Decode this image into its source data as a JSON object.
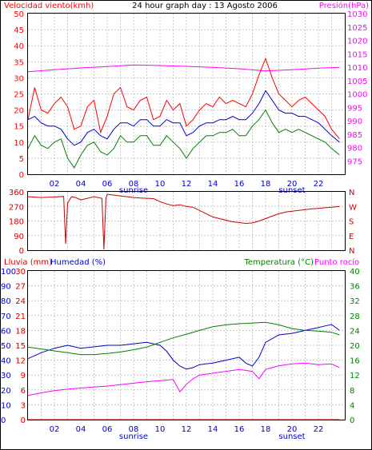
{
  "chart_data": [
    {
      "type": "line",
      "title": "24 hour graph day : 13 Agosto 2006",
      "left_axis_label": "Velocidad viento(kmh)",
      "right_axis_label": "Presión(hPa)",
      "x_ticks": [
        "02",
        "04",
        "06",
        "08",
        "10",
        "12",
        "14",
        "16",
        "18",
        "20",
        "22"
      ],
      "x_annotations": [
        {
          "at": "08",
          "text": "sunrise"
        },
        {
          "at": "20",
          "text": "sunset"
        }
      ],
      "y_left": {
        "min": 0,
        "max": 50,
        "ticks": [
          0,
          5,
          10,
          15,
          20,
          25,
          30,
          35,
          40,
          45,
          50
        ]
      },
      "y_right": {
        "min": 970,
        "max": 1030,
        "ticks": [
          975,
          980,
          985,
          990,
          995,
          1000,
          1005,
          1010,
          1015,
          1020,
          1025,
          1030
        ]
      },
      "series": [
        {
          "color": "#ff00ff",
          "axis": "right",
          "x": [
            0,
            2,
            4,
            6,
            8,
            10,
            12,
            14,
            16,
            18,
            20,
            22,
            23.6
          ],
          "values": [
            1008.3,
            1009.0,
            1009.7,
            1010.2,
            1010.8,
            1010.6,
            1010.3,
            1009.9,
            1009.4,
            1008.6,
            1009.0,
            1009.6,
            1009.9
          ]
        },
        {
          "color": "#ff0000",
          "axis": "left",
          "x": [
            0,
            0.5,
            1,
            1.5,
            2,
            2.5,
            3,
            3.5,
            4,
            4.5,
            5,
            5.5,
            6,
            6.5,
            7,
            7.5,
            8,
            8.5,
            9,
            9.5,
            10,
            10.5,
            11,
            11.5,
            12,
            12.5,
            13,
            13.5,
            14,
            14.5,
            15,
            15.5,
            16,
            16.5,
            17,
            17.5,
            18,
            18.5,
            19,
            19.5,
            20,
            20.5,
            21,
            21.5,
            22,
            22.5,
            23,
            23.6
          ],
          "values": [
            17,
            27,
            20,
            19,
            22,
            24,
            21,
            14,
            15,
            21,
            23,
            13,
            18,
            25,
            27,
            21,
            20,
            23,
            24,
            17,
            18,
            23,
            20,
            22,
            15,
            17,
            20,
            22,
            21,
            24,
            22,
            23,
            22,
            21,
            25,
            31,
            36,
            30,
            25,
            23,
            21,
            23,
            24,
            22,
            20,
            18,
            14,
            11
          ]
        },
        {
          "color": "#0000cc",
          "axis": "left",
          "x": [
            0,
            0.5,
            1,
            1.5,
            2,
            2.5,
            3,
            3.5,
            4,
            4.5,
            5,
            5.5,
            6,
            6.5,
            7,
            7.5,
            8,
            8.5,
            9,
            9.5,
            10,
            10.5,
            11,
            11.5,
            12,
            12.5,
            13,
            13.5,
            14,
            14.5,
            15,
            15.5,
            16,
            16.5,
            17,
            17.5,
            18,
            18.5,
            19,
            19.5,
            20,
            20.5,
            21,
            21.5,
            22,
            22.5,
            23,
            23.6
          ],
          "values": [
            17,
            18,
            16,
            15,
            15,
            14,
            11,
            9,
            10,
            13,
            14,
            12,
            11,
            14,
            16,
            16,
            15,
            17,
            17,
            15,
            15,
            17,
            16,
            16,
            12,
            13,
            15,
            16,
            16,
            17,
            17,
            18,
            17,
            17,
            19,
            22,
            26,
            23,
            20,
            19,
            19,
            18,
            18,
            17,
            16,
            14,
            12,
            10
          ]
        },
        {
          "color": "#008000",
          "axis": "left",
          "x": [
            0,
            0.5,
            1,
            1.5,
            2,
            2.5,
            3,
            3.5,
            4,
            4.5,
            5,
            5.5,
            6,
            6.5,
            7,
            7.5,
            8,
            8.5,
            9,
            9.5,
            10,
            10.5,
            11,
            11.5,
            12,
            12.5,
            13,
            13.5,
            14,
            14.5,
            15,
            15.5,
            16,
            16.5,
            17,
            17.5,
            18,
            18.5,
            19,
            19.5,
            20,
            20.5,
            21,
            21.5,
            22,
            22.5,
            23,
            23.6
          ],
          "values": [
            8,
            12,
            9,
            8,
            10,
            11,
            5,
            2,
            6,
            9,
            10,
            7,
            6,
            8,
            12,
            10,
            10,
            12,
            12,
            9,
            9,
            12,
            10,
            8,
            5,
            8,
            10,
            12,
            12,
            13,
            13,
            14,
            12,
            12,
            15,
            17,
            20,
            16,
            13,
            14,
            13,
            14,
            13,
            12,
            11,
            10,
            8,
            6
          ]
        }
      ]
    },
    {
      "type": "line",
      "left_ticks": [
        0,
        90,
        180,
        270,
        360
      ],
      "right_labels": [
        "N",
        "W",
        "S",
        "E",
        "N"
      ],
      "y_range": [
        0,
        360
      ],
      "series": [
        {
          "color": "#cc0000",
          "x": [
            0,
            1,
            2,
            2.7,
            2.85,
            3,
            3.3,
            3.6,
            4,
            4.5,
            5,
            5.6,
            5.75,
            5.9,
            6,
            6.5,
            7,
            7.5,
            8,
            8.5,
            9,
            9.5,
            10,
            10.5,
            11,
            11.5,
            12,
            12.5,
            13,
            13.5,
            14,
            14.5,
            15,
            15.5,
            16,
            16.5,
            17,
            17.5,
            18,
            18.5,
            19,
            19.5,
            20,
            20.5,
            21,
            21.5,
            22,
            22.5,
            23,
            23.6
          ],
          "values": [
            330,
            325,
            328,
            332,
            40,
            290,
            330,
            325,
            310,
            320,
            330,
            320,
            5,
            320,
            345,
            340,
            335,
            330,
            325,
            322,
            320,
            318,
            300,
            285,
            275,
            280,
            270,
            265,
            245,
            225,
            205,
            195,
            185,
            175,
            170,
            165,
            168,
            180,
            195,
            210,
            225,
            235,
            240,
            245,
            250,
            255,
            258,
            262,
            265,
            270
          ]
        }
      ]
    },
    {
      "type": "line",
      "left_axis_label_1": "Lluvia (mm)",
      "left_axis_label_2": "Humedad (%)",
      "right_axis_label_1": "Temperatura (°C)",
      "right_axis_label_2": "Punto rocío",
      "rain_ticks": [
        0,
        3,
        6,
        9,
        12,
        15,
        18,
        21,
        24,
        27,
        30
      ],
      "humidity_ticks": [
        0,
        10,
        20,
        30,
        40,
        50,
        60,
        70,
        80,
        90,
        100
      ],
      "temp_ticks": [
        0,
        4,
        8,
        12,
        16,
        20,
        24,
        28,
        32,
        36,
        40
      ],
      "x_ticks": [
        "02",
        "04",
        "06",
        "08",
        "10",
        "12",
        "14",
        "16",
        "18",
        "20",
        "22"
      ],
      "x_annotations": [
        {
          "at": "08",
          "text": "sunrise"
        },
        {
          "at": "20",
          "text": "sunset"
        }
      ],
      "series": [
        {
          "name": "rain",
          "color": "#ff0000",
          "axis": "rain",
          "x": [
            0,
            23.6
          ],
          "values": [
            0,
            0
          ]
        },
        {
          "color": "#ff00ff",
          "axis": "temp",
          "x": [
            0,
            1,
            2,
            3,
            4,
            5,
            6,
            7,
            8,
            9,
            10,
            11,
            11.5,
            12,
            12.5,
            13,
            14,
            15,
            16,
            17,
            17.5,
            18,
            19,
            20,
            21,
            22,
            23,
            23.6
          ],
          "values": [
            6.5,
            7.2,
            7.8,
            8.2,
            8.5,
            8.8,
            9.0,
            9.4,
            9.8,
            10.2,
            10.5,
            10.8,
            7.5,
            9.5,
            11,
            12,
            12.5,
            13,
            13.5,
            13.0,
            11,
            13.5,
            14.5,
            15,
            15.2,
            14.8,
            15,
            14
          ]
        },
        {
          "color": "#0000cc",
          "axis": "humidity",
          "x": [
            0,
            1,
            2,
            3,
            4,
            5,
            6,
            7,
            8,
            9,
            10,
            10.5,
            11,
            11.5,
            12,
            12.5,
            13,
            14,
            15,
            16,
            16.5,
            17,
            17.5,
            18,
            19,
            20,
            21,
            22,
            22.5,
            23,
            23.6
          ],
          "values": [
            41,
            45,
            48,
            50,
            48,
            49,
            50,
            50,
            51,
            52,
            50,
            46,
            40,
            36,
            34,
            35,
            37,
            38,
            40,
            42,
            38,
            36,
            42,
            52,
            57,
            58,
            60,
            62,
            63,
            64,
            60
          ]
        },
        {
          "color": "#008000",
          "axis": "temp",
          "x": [
            0,
            1,
            2,
            3,
            4,
            5,
            6,
            7,
            8,
            9,
            10,
            11,
            12,
            13,
            14,
            15,
            16,
            17,
            18,
            19,
            20,
            21,
            22,
            23,
            23.6
          ],
          "values": [
            19.5,
            19.0,
            18.5,
            18.0,
            17.5,
            17.5,
            17.8,
            18.2,
            18.8,
            19.5,
            20.8,
            22.0,
            23.0,
            24.0,
            25.0,
            25.5,
            25.8,
            26.0,
            26.2,
            25.5,
            24.5,
            24.0,
            23.8,
            23.5,
            22.8
          ]
        }
      ]
    }
  ]
}
